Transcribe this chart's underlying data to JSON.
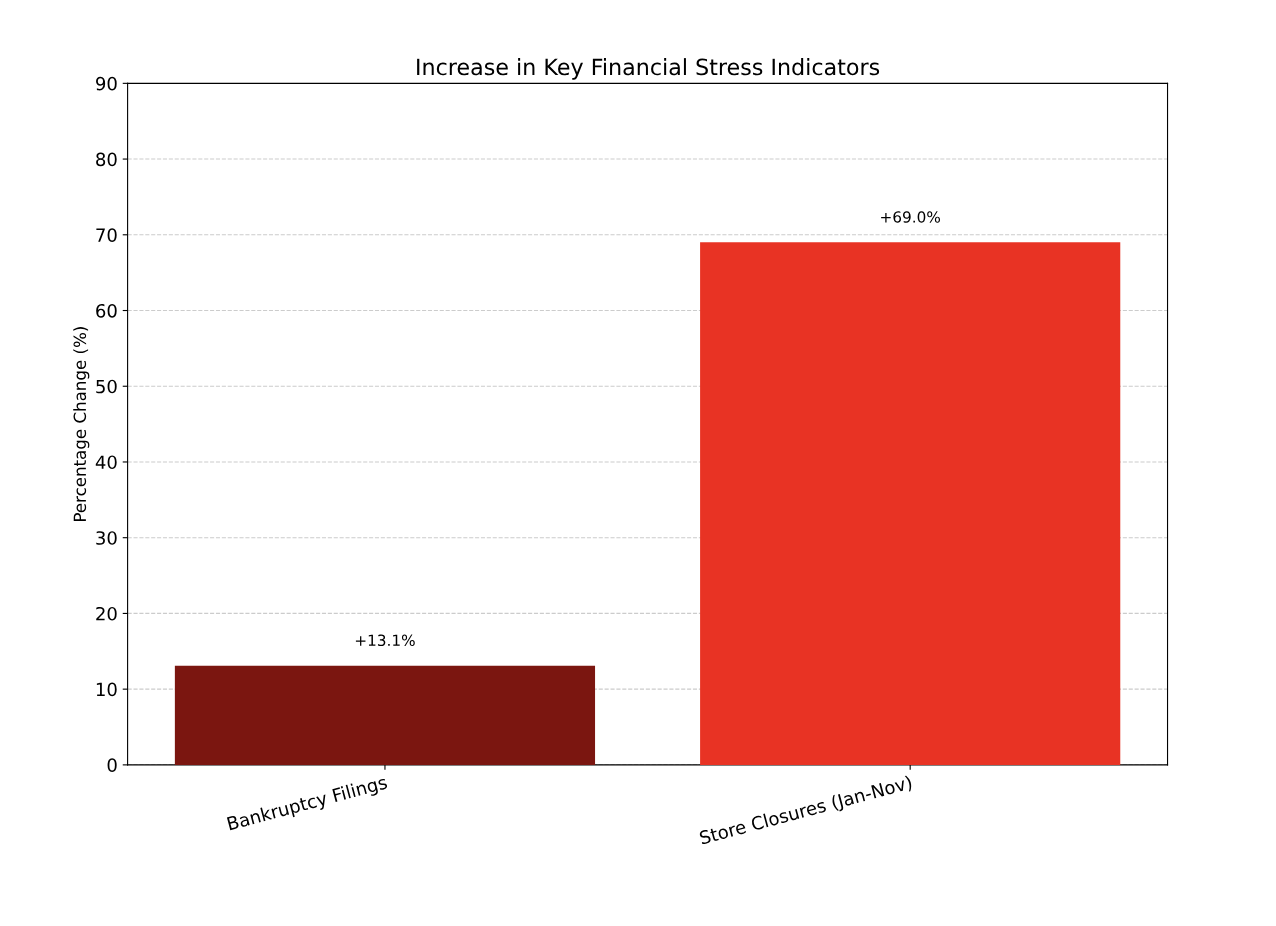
{
  "chart_data": {
    "type": "bar",
    "title": "Increase in Key Financial Stress Indicators",
    "ylabel": "Percentage Change (%)",
    "categories": [
      "Bankruptcy Filings",
      "Store Closures (Jan-Nov)"
    ],
    "values": [
      13.1,
      69.0
    ],
    "colors": [
      "#7b1610",
      "#e83324"
    ],
    "value_labels": [
      "+13.1%",
      "+69.0%"
    ],
    "ylim": [
      0,
      90
    ],
    "yticks": [
      0,
      10,
      20,
      30,
      40,
      50,
      60,
      70,
      80,
      90
    ],
    "grid": "y"
  }
}
